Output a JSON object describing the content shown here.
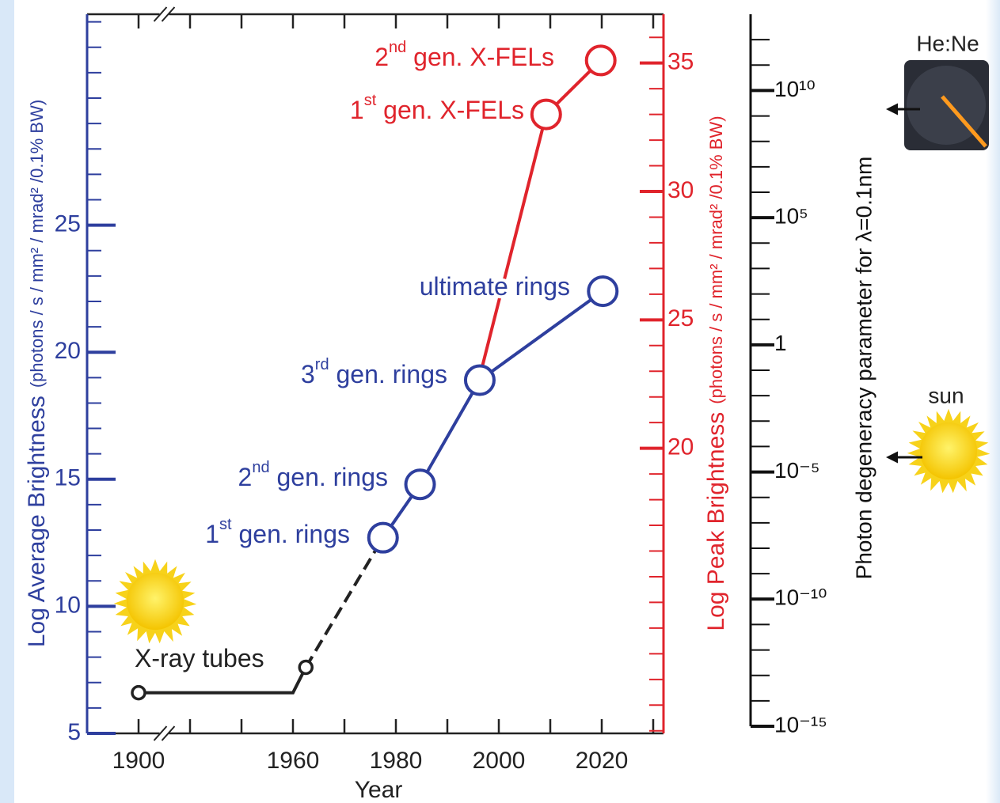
{
  "chart_data": {
    "type": "line",
    "x_label": "Year",
    "y_label": {
      "main": "Log Average Brightness",
      "units": "(photons / s / mm² / mrad² /0.1% BW)"
    },
    "y2_label": {
      "main": "Log Peak Brightness",
      "units": "(photons / s / mm² / mrad² /0.1% BW)"
    },
    "y3_label": "Photon degeneracy parameter for λ=0.1nm",
    "xlim": [
      1890,
      2032
    ],
    "xbreak": [
      1905,
      1935
    ],
    "xticks": [
      1900,
      1960,
      1980,
      2000,
      2020
    ],
    "xticks_minor": [
      1940,
      1950,
      1970,
      1990,
      2010,
      2030
    ],
    "ylim": [
      5,
      33.3
    ],
    "yticks": [
      5,
      10,
      15,
      20,
      25
    ],
    "yticks_minor": [
      6,
      7,
      8,
      9,
      11,
      12,
      13,
      14,
      16,
      17,
      18,
      19,
      21,
      22,
      23,
      24,
      26,
      27,
      28,
      29,
      30,
      31,
      32,
      33
    ],
    "y_color": "#2e3f9e",
    "y2lim": [
      8.9,
      36.9
    ],
    "y2ticks": [
      20,
      25,
      30,
      35
    ],
    "y2ticks_minor": [
      9,
      10,
      11,
      12,
      13,
      14,
      15,
      16,
      17,
      18,
      19,
      21,
      22,
      23,
      24,
      26,
      27,
      28,
      29,
      31,
      32,
      33,
      34,
      36
    ],
    "y2_color": "#e0242c",
    "y3lim": [
      1e-15,
      10000000000000.0
    ],
    "y3_log": true,
    "y3ticks": [
      {
        "value": 10000000000.0,
        "label": "10¹⁰"
      },
      {
        "value": 100000.0,
        "label": "10⁵"
      },
      1,
      {
        "value": 1e-05,
        "label": "10⁻⁵"
      },
      {
        "value": 1e-10,
        "label": "10⁻¹⁰"
      },
      {
        "value": 1e-15,
        "label": "10⁻¹⁵"
      }
    ],
    "y3ticks_minor": [
      1e-14,
      1e-13,
      1e-12,
      1e-11,
      1e-09,
      1e-08,
      1e-07,
      1e-06,
      0.0001,
      0.001,
      0.01,
      0.1,
      10,
      100,
      1000,
      10000.0,
      1000000.0,
      10000000.0,
      100000000.0,
      1000000000.0,
      100000000000.0,
      1000000000000.0
    ],
    "y3_color": "#111111",
    "series": [
      {
        "color": "#222222",
        "style": "solid",
        "x": [
          1900,
          1960,
          1962.5
        ],
        "values": [
          6.6,
          6.6,
          7.6
        ],
        "markers": [
          "small",
          null,
          "small"
        ]
      },
      {
        "color": "#222222",
        "style": "dashed",
        "x": [
          1962.5,
          1977.5
        ],
        "values": [
          7.6,
          12.7
        ],
        "markers": [
          null,
          null
        ]
      },
      {
        "color": "#e0242c",
        "style": "solid",
        "axis": "y2",
        "x": [
          1996.3,
          2009.2,
          2019.8
        ],
        "values": [
          22.8,
          33.0,
          35.1
        ],
        "markers": [
          null,
          "large",
          "large"
        ]
      },
      {
        "color": "#2e3f9e",
        "style": "solid",
        "x": [
          1977.5,
          1984.7,
          1996.3,
          2020.2
        ],
        "values": [
          12.7,
          14.8,
          18.9,
          22.4
        ],
        "markers": [
          "large",
          "large",
          "large",
          "large"
        ]
      }
    ],
    "annotations": [
      {
        "ordinal": "2",
        "suffix": "nd",
        "text": " gen. X-FELs",
        "color": "#e0242c"
      },
      {
        "ordinal": "1",
        "suffix": "st",
        "text": " gen. X-FELs",
        "color": "#e0242c"
      },
      {
        "text": "ultimate rings",
        "color": "#2e3f9e"
      },
      {
        "ordinal": "3",
        "suffix": "rd",
        "text": " gen. rings",
        "color": "#2e3f9e"
      },
      {
        "ordinal": "2",
        "suffix": "nd",
        "text": " gen. rings",
        "color": "#2e3f9e"
      },
      {
        "ordinal": "1",
        "suffix": "st",
        "text": " gen. rings",
        "color": "#2e3f9e"
      },
      {
        "text": "X-ray tubes",
        "color": "#222222"
      }
    ],
    "laser_label": "He:Ne",
    "sun_label": "sun"
  }
}
